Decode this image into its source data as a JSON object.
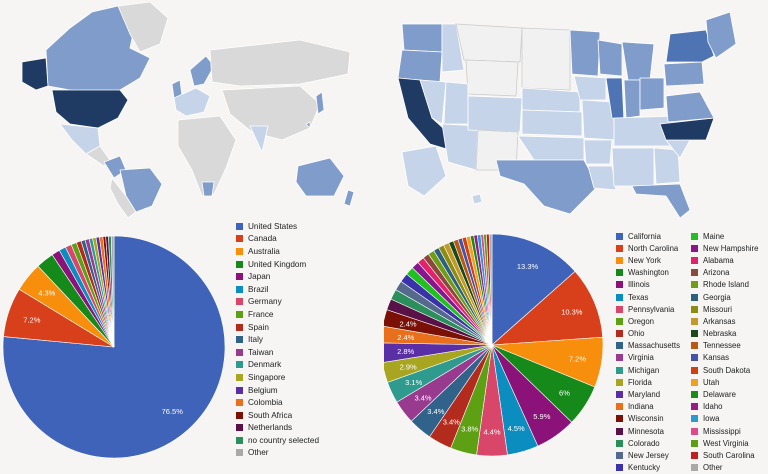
{
  "colors": {
    "background": "#f6f5f4",
    "map_land": "#d9d9d9",
    "map_light": "#c6d4ea",
    "map_mid": "#7f9ccb",
    "map_dark": "#1f3b63"
  },
  "chart_data": [
    {
      "type": "pie",
      "title": "",
      "series": [
        {
          "label": "United States",
          "value": 76.5,
          "color": "#3f63b8"
        },
        {
          "label": "Canada",
          "value": 7.2,
          "color": "#d8401b"
        },
        {
          "label": "Australia",
          "value": 4.3,
          "color": "#f78f0c"
        },
        {
          "label": "United Kingdom",
          "value": 2.6,
          "color": "#15891a"
        },
        {
          "label": "Japan",
          "value": 1.2,
          "color": "#8b1279"
        },
        {
          "label": "Brazil",
          "value": 1.0,
          "color": "#0b8dbf"
        },
        {
          "label": "Germany",
          "value": 0.9,
          "color": "#d8466a"
        },
        {
          "label": "France",
          "value": 0.8,
          "color": "#5da014"
        },
        {
          "label": "Spain",
          "value": 0.7,
          "color": "#b32b1c"
        },
        {
          "label": "Italy",
          "value": 0.6,
          "color": "#31628a"
        },
        {
          "label": "Taiwan",
          "value": 0.6,
          "color": "#983b8f"
        },
        {
          "label": "Denmark",
          "value": 0.5,
          "color": "#2f9b8f"
        },
        {
          "label": "Singapore",
          "value": 0.5,
          "color": "#a8a520"
        },
        {
          "label": "Belgium",
          "value": 0.5,
          "color": "#5a2fa6"
        },
        {
          "label": "Colombia",
          "value": 0.5,
          "color": "#e8701d"
        },
        {
          "label": "South Africa",
          "value": 0.4,
          "color": "#7a1006"
        },
        {
          "label": "Netherlands",
          "value": 0.4,
          "color": "#5a1148"
        },
        {
          "label": "no country selected",
          "value": 0.4,
          "color": "#2b8f5b"
        },
        {
          "label": "Other",
          "value": 0.4,
          "color": "#a9a9a9"
        }
      ],
      "data_labels": [
        "76.5%",
        "7.2%",
        "4.3%"
      ]
    },
    {
      "type": "pie",
      "title": "",
      "series": [
        {
          "label": "California",
          "value": 13.3,
          "color": "#3f63b8"
        },
        {
          "label": "North Carolina",
          "value": 10.3,
          "color": "#d8401b"
        },
        {
          "label": "New York",
          "value": 7.2,
          "color": "#f78f0c"
        },
        {
          "label": "Washington",
          "value": 6.0,
          "color": "#15891a"
        },
        {
          "label": "Illinois",
          "value": 5.9,
          "color": "#8b1279"
        },
        {
          "label": "Texas",
          "value": 4.5,
          "color": "#0b8dbf"
        },
        {
          "label": "Pennsylvania",
          "value": 4.4,
          "color": "#d8466a"
        },
        {
          "label": "Oregon",
          "value": 3.8,
          "color": "#5da014"
        },
        {
          "label": "Ohio",
          "value": 3.4,
          "color": "#b32b1c"
        },
        {
          "label": "Massachusetts",
          "value": 3.4,
          "color": "#31628a"
        },
        {
          "label": "Virginia",
          "value": 3.4,
          "color": "#983b8f"
        },
        {
          "label": "Michigan",
          "value": 3.1,
          "color": "#2f9b8f"
        },
        {
          "label": "Florida",
          "value": 2.9,
          "color": "#a8a520"
        },
        {
          "label": "Maryland",
          "value": 2.8,
          "color": "#5a2fa6"
        },
        {
          "label": "Indiana",
          "value": 2.4,
          "color": "#e8701d"
        },
        {
          "label": "Wisconsin",
          "value": 2.4,
          "color": "#7a1006"
        },
        {
          "label": "Minnesota",
          "value": 1.6,
          "color": "#5a1148"
        },
        {
          "label": "Colorado",
          "value": 1.5,
          "color": "#2b8f5b"
        },
        {
          "label": "New Jersey",
          "value": 1.4,
          "color": "#54698c"
        },
        {
          "label": "Kentucky",
          "value": 1.3,
          "color": "#3a32a8"
        },
        {
          "label": "Maine",
          "value": 1.2,
          "color": "#20c020"
        },
        {
          "label": "New Hampshire",
          "value": 1.1,
          "color": "#8a168d"
        },
        {
          "label": "Alabama",
          "value": 1.0,
          "color": "#e2226b"
        },
        {
          "label": "Arizona",
          "value": 0.9,
          "color": "#8a4a3a"
        },
        {
          "label": "Rhode Island",
          "value": 0.9,
          "color": "#6e9d18"
        },
        {
          "label": "Georgia",
          "value": 0.8,
          "color": "#2d5f7f"
        },
        {
          "label": "Missouri",
          "value": 0.8,
          "color": "#8c8d10"
        },
        {
          "label": "Arkansas",
          "value": 0.8,
          "color": "#c39a2a"
        },
        {
          "label": "Nebraska",
          "value": 0.7,
          "color": "#1a4a1a"
        },
        {
          "label": "Tennessee",
          "value": 0.7,
          "color": "#b85a10"
        },
        {
          "label": "Kansas",
          "value": 0.6,
          "color": "#4654a8"
        },
        {
          "label": "South Dakota",
          "value": 0.6,
          "color": "#d04010"
        },
        {
          "label": "Utah",
          "value": 0.6,
          "color": "#f0a020"
        },
        {
          "label": "Delaware",
          "value": 0.5,
          "color": "#1a8a1a"
        },
        {
          "label": "Idaho",
          "value": 0.5,
          "color": "#9a1a8a"
        },
        {
          "label": "Iowa",
          "value": 0.5,
          "color": "#2a9ad0"
        },
        {
          "label": "Mississippi",
          "value": 0.4,
          "color": "#e04a8a"
        },
        {
          "label": "West Virginia",
          "value": 0.4,
          "color": "#5aa010"
        },
        {
          "label": "South Carolina",
          "value": 0.4,
          "color": "#c02020"
        },
        {
          "label": "Other",
          "value": 0.4,
          "color": "#a9a9a9"
        }
      ],
      "data_labels": [
        "13.3%",
        "10.3%",
        "7.2%",
        "6%",
        "5.9%",
        "4.5%",
        "4.4%",
        "3.8%",
        "3.4%",
        "3.4%",
        "3.4%",
        "3.1%",
        "2.9%",
        "2.8%",
        "2.4%",
        "2.4%"
      ]
    }
  ]
}
